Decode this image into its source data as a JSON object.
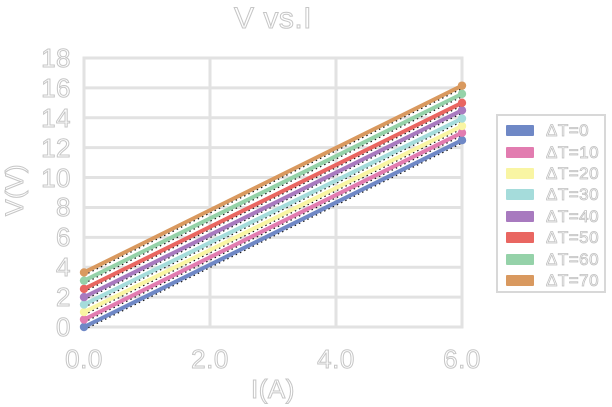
{
  "title": "V vs.I",
  "axes": {
    "xlabel": "I(A)",
    "ylabel": "V(V)"
  },
  "chart_data": {
    "type": "line",
    "title": "V vs.I",
    "xlabel": "I(A)",
    "ylabel": "V(V)",
    "xlim": [
      0,
      6
    ],
    "ylim": [
      0,
      18
    ],
    "x_ticks": [
      0,
      2,
      4,
      6
    ],
    "x_tick_labels": [
      "0.0",
      "2.0",
      "4.0",
      "6.0"
    ],
    "y_ticks": [
      0,
      2,
      4,
      6,
      8,
      10,
      12,
      14,
      16,
      18
    ],
    "y_tick_labels": [
      "0",
      "2",
      "4",
      "6",
      "8",
      "10",
      "12",
      "14",
      "16",
      "18"
    ],
    "grid": true,
    "legend_position": "right",
    "x": [
      0,
      6
    ],
    "series": [
      {
        "name": "ΔT=0",
        "color": "#6f88c6",
        "values": [
          0.0,
          12.5
        ]
      },
      {
        "name": "ΔT=10",
        "color": "#e27cb0",
        "values": [
          0.5,
          13.0
        ]
      },
      {
        "name": "ΔT=20",
        "color": "#f9f5a3",
        "values": [
          1.0,
          13.45
        ]
      },
      {
        "name": "ΔT=30",
        "color": "#a5dcdb",
        "values": [
          1.5,
          13.95
        ]
      },
      {
        "name": "ΔT=40",
        "color": "#a87abf",
        "values": [
          2.0,
          14.5
        ]
      },
      {
        "name": "ΔT=50",
        "color": "#e96661",
        "values": [
          2.55,
          15.0
        ]
      },
      {
        "name": "ΔT=60",
        "color": "#95d2a9",
        "values": [
          3.1,
          15.6
        ]
      },
      {
        "name": "ΔT=70",
        "color": "#d9995f",
        "values": [
          3.65,
          16.15
        ]
      }
    ],
    "fit_lines": {
      "style": "dotted",
      "color": "#1a1a1a"
    }
  },
  "styles": {
    "grid_color": "#e2e2e2",
    "text_outline_color": "#c6c6c6",
    "legend_border_color": "#d8d8d8",
    "background": "#ffffff"
  }
}
